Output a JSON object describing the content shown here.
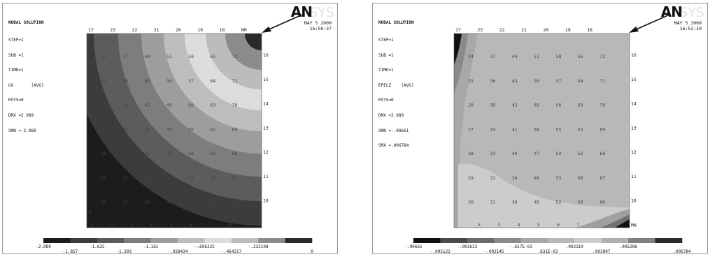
{
  "left": {
    "header": "NODAL SOLUTION",
    "info_lines": [
      "STEP=1",
      "SUB =1",
      "TIME=1",
      "UX       (AVG)",
      "RSYS=0",
      "DMX =2.089",
      "SMN =-2.089"
    ],
    "date": "MAY  5 2009",
    "time": "16:50:37",
    "logo": "AN",
    "logo_suffix": "SYS",
    "top_labels": [
      "17",
      "23",
      "22",
      "21",
      "20",
      "19",
      "18",
      "NM"
    ],
    "right_labels": [
      "16",
      "15",
      "14",
      "13",
      "12",
      "11",
      "10",
      ""
    ],
    "grid": [
      [
        "24",
        "37",
        "44",
        "51",
        "58",
        "65",
        "72"
      ],
      [
        "25",
        "36",
        "43",
        "50",
        "57",
        "64",
        "71"
      ],
      [
        "26",
        "35",
        "42",
        "49",
        "56",
        "63",
        "70"
      ],
      [
        "27",
        "34",
        "41",
        "48",
        "55",
        "62",
        "69"
      ],
      [
        "28",
        "33",
        "40",
        "47",
        "54",
        "61",
        "68"
      ],
      [
        "29",
        "32",
        "39",
        "46",
        "53",
        "60",
        "67"
      ],
      [
        "30",
        "31",
        "38",
        "45",
        "52",
        "59",
        "66"
      ]
    ],
    "bottom_labels": [
      "Z",
      "X",
      "3",
      "4",
      "5",
      "6",
      "7",
      "8",
      "9"
    ],
    "axis_y": "Y",
    "legend_colors": [
      "#1c1c1c",
      "#3c3c3c",
      "#5c5c5c",
      "#7d7d7d",
      "#9d9d9d",
      "#bdbdbd",
      "#dcdcdc",
      "#bcbcbc",
      "#8c8c8c",
      "#2a2a2a"
    ],
    "legend_top": [
      "-2.089",
      "-1.625",
      "-1.161",
      "-.696325",
      "-.232108"
    ],
    "legend_bottom": [
      "-1.857",
      "-1.393",
      "-.928434",
      "-.464217",
      "0"
    ]
  },
  "right": {
    "header": "NODAL SOLUTION",
    "info_lines": [
      "STEP=1",
      "SUB =1",
      "TIME=1",
      "EPELZ    (AVG)",
      "RSYS=0",
      "DMX =2.089",
      "SMN =-.00661",
      "SMX =.006784"
    ],
    "date": "MAY  5 2009",
    "time": "16:52:19",
    "logo": "AN",
    "logo_suffix": "SYS",
    "top_labels": [
      "17",
      "23",
      "22",
      "21",
      "20",
      "19",
      "18",
      ""
    ],
    "right_labels": [
      "16",
      "15",
      "14",
      "13",
      "12",
      "11",
      "10",
      "MN"
    ],
    "grid": [
      [
        "24",
        "37",
        "44",
        "51",
        "58",
        "65",
        "72"
      ],
      [
        "25",
        "36",
        "43",
        "50",
        "57",
        "64",
        "71"
      ],
      [
        "26",
        "35",
        "42",
        "49",
        "56",
        "63",
        "70"
      ],
      [
        "27",
        "34",
        "41",
        "48",
        "55",
        "62",
        "69"
      ],
      [
        "28",
        "33",
        "40",
        "47",
        "54",
        "61",
        "68"
      ],
      [
        "29",
        "32",
        "39",
        "46",
        "53",
        "60",
        "67"
      ],
      [
        "30",
        "31",
        "38",
        "45",
        "52",
        "59",
        "66"
      ]
    ],
    "bottom_labels": [
      "",
      "X",
      "3",
      "4",
      "5",
      "6",
      "7",
      "",
      ""
    ],
    "axis_y": "",
    "legend_colors": [
      "#111111",
      "#4a4a4a",
      "#6a6a6a",
      "#8a8a8a",
      "#a8a8a8",
      "#b8b8b8",
      "#cccccc",
      "#b0b0b0",
      "#808080",
      "#2a2a2a"
    ],
    "legend_top": [
      "-.00661",
      "-.003633",
      "-.657E-03",
      ".002319",
      ".005296"
    ],
    "legend_bottom": [
      "-.005122",
      "-.002145",
      ".831E-03",
      ".003807",
      ".006784"
    ]
  }
}
